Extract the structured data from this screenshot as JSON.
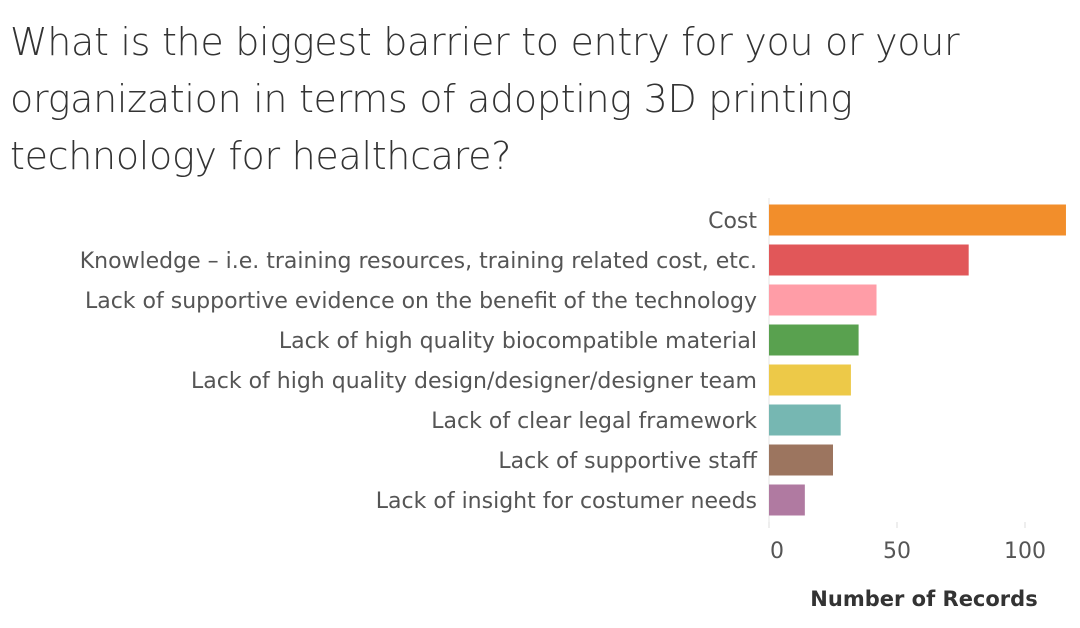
{
  "chart_data": {
    "type": "bar",
    "orientation": "horizontal",
    "title": "What is the biggest barrier to entry for you or your organization in terms of adopting 3D printing technology for healthcare?",
    "xlabel": "Number of Records",
    "ylabel": "",
    "categories": [
      "Cost",
      "Knowledge – i.e. training resources, training related cost, etc.",
      "Lack of supportive evidence on the benefit of the technology",
      "Lack of high quality biocompatible material",
      "Lack of high quality design/designer/designer team",
      "Lack of clear legal framework",
      "Lack of supportive staff",
      "Lack of insight for costumer needs"
    ],
    "values": [
      116,
      78,
      42,
      35,
      32,
      28,
      25,
      14
    ],
    "colors": [
      "#F28E2B",
      "#E15759",
      "#FF9DA7",
      "#59A14F",
      "#EDC948",
      "#76B7B2",
      "#9C755F",
      "#B07AA1"
    ],
    "xlim": [
      0,
      118
    ],
    "xticks": [
      0,
      50,
      100
    ],
    "grid": false
  }
}
